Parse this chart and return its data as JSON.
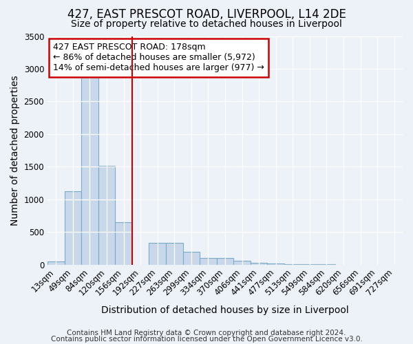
{
  "title": "427, EAST PRESCOT ROAD, LIVERPOOL, L14 2DE",
  "subtitle": "Size of property relative to detached houses in Liverpool",
  "xlabel": "Distribution of detached houses by size in Liverpool",
  "ylabel": "Number of detached properties",
  "bar_labels": [
    "13sqm",
    "49sqm",
    "84sqm",
    "120sqm",
    "156sqm",
    "192sqm",
    "227sqm",
    "263sqm",
    "299sqm",
    "334sqm",
    "370sqm",
    "406sqm",
    "441sqm",
    "477sqm",
    "513sqm",
    "549sqm",
    "584sqm",
    "620sqm",
    "656sqm",
    "691sqm",
    "727sqm"
  ],
  "bar_values": [
    50,
    1120,
    2930,
    1510,
    650,
    0,
    330,
    330,
    195,
    100,
    100,
    60,
    30,
    15,
    5,
    3,
    2,
    1,
    1,
    1,
    1
  ],
  "bar_color": "#c8d8ea",
  "bar_edge_color": "#7aaac8",
  "vline_x": 5,
  "vline_color": "#cc0000",
  "ylim": [
    0,
    3500
  ],
  "yticks": [
    0,
    500,
    1000,
    1500,
    2000,
    2500,
    3000,
    3500
  ],
  "annotation_text": "427 EAST PRESCOT ROAD: 178sqm\n← 86% of detached houses are smaller (5,972)\n14% of semi-detached houses are larger (977) →",
  "annotation_box_color": "#ffffff",
  "annotation_box_edge": "#cc0000",
  "footer_line1": "Contains HM Land Registry data © Crown copyright and database right 2024.",
  "footer_line2": "Contains public sector information licensed under the Open Government Licence v3.0.",
  "bg_color": "#edf2f8",
  "plot_bg_color": "#edf2f8",
  "title_fontsize": 12,
  "subtitle_fontsize": 10,
  "axis_label_fontsize": 10,
  "tick_fontsize": 8.5,
  "annotation_fontsize": 9,
  "footer_fontsize": 7.5
}
